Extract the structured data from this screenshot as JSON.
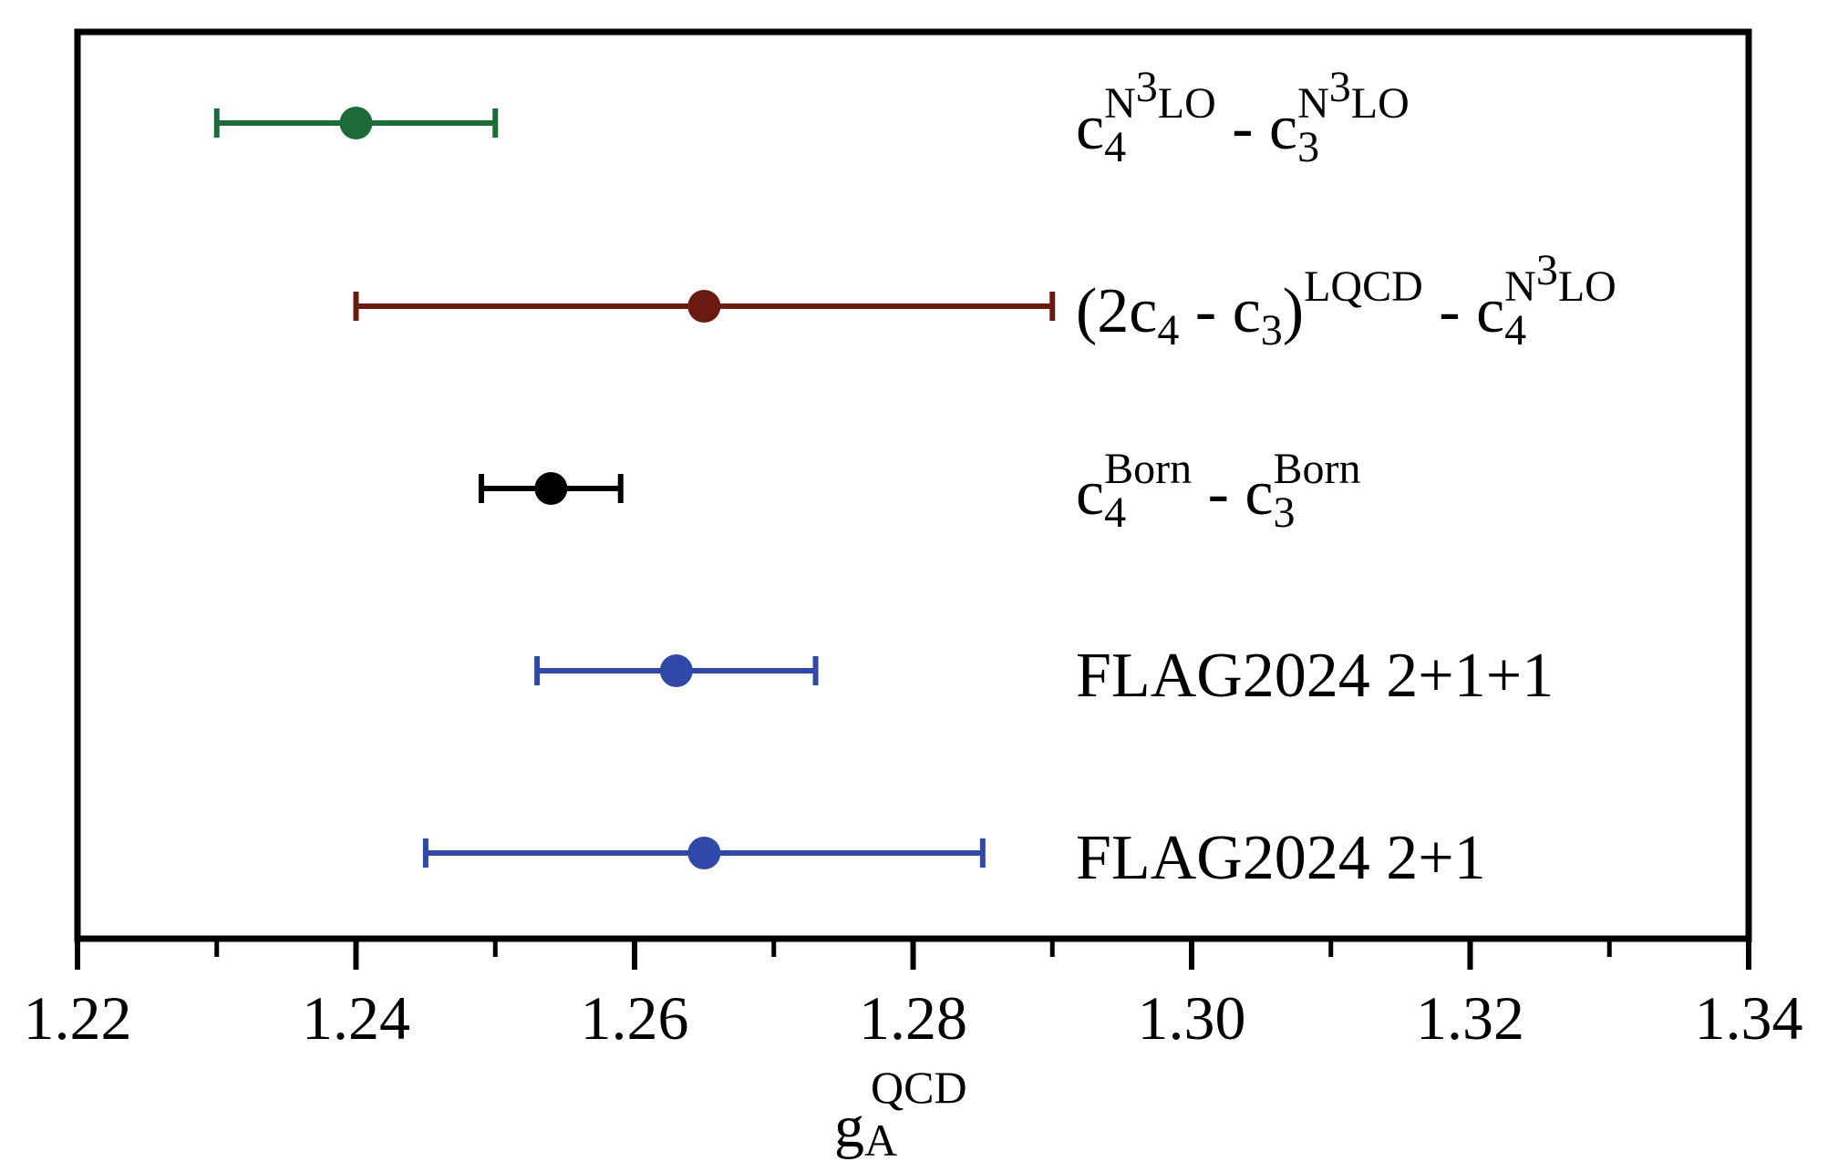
{
  "chart_data": {
    "type": "scatter",
    "orientation": "horizontal-error-bars",
    "xlabel": {
      "base": "g",
      "sub": "A",
      "sup": "QCD"
    },
    "xlim": [
      1.22,
      1.34
    ],
    "x_ticks": [
      "1.22",
      "1.24",
      "1.26",
      "1.28",
      "1.30",
      "1.32",
      "1.34"
    ],
    "x_tick_values": [
      1.22,
      1.24,
      1.26,
      1.28,
      1.3,
      1.32,
      1.34
    ],
    "x_minor_ticks": [
      1.23,
      1.25,
      1.27,
      1.29,
      1.31,
      1.33
    ],
    "grid": false,
    "legend": "none",
    "series": [
      {
        "label_parts": [
          {
            "t": "c"
          },
          {
            "t": "4",
            "sub": true
          },
          {
            "t": "N",
            "sup": true
          },
          {
            "t": "3",
            "sup2": true
          },
          {
            "t": "LO",
            "sup": true
          },
          {
            "t": " - c"
          },
          {
            "t": "3",
            "sub": true
          },
          {
            "t": "N",
            "sup": true
          },
          {
            "t": "3",
            "sup2": true
          },
          {
            "t": "LO",
            "sup": true
          }
        ],
        "value": 1.24,
        "low": 1.23,
        "high": 1.25,
        "color": "#1e6b3a"
      },
      {
        "label_parts": [
          {
            "t": "(2c"
          },
          {
            "t": "4",
            "sub": true
          },
          {
            "t": " - c"
          },
          {
            "t": "3",
            "sub": true
          },
          {
            "t": ")"
          },
          {
            "t": "LQCD",
            "sup": true
          },
          {
            "t": " - c"
          },
          {
            "t": "4",
            "sub": true
          },
          {
            "t": "N",
            "sup": true
          },
          {
            "t": "3",
            "sup2": true
          },
          {
            "t": "LO",
            "sup": true
          }
        ],
        "value": 1.265,
        "low": 1.24,
        "high": 1.29,
        "color": "#6b1a12"
      },
      {
        "label_parts": [
          {
            "t": "c"
          },
          {
            "t": "4",
            "sub": true
          },
          {
            "t": "Born",
            "sup": true
          },
          {
            "t": " - c"
          },
          {
            "t": "3",
            "sub": true
          },
          {
            "t": "Born",
            "sup": true
          }
        ],
        "value": 1.254,
        "low": 1.249,
        "high": 1.259,
        "color": "#000000"
      },
      {
        "label_parts": [
          {
            "t": "FLAG2024 2+1+1"
          }
        ],
        "value": 1.263,
        "low": 1.253,
        "high": 1.273,
        "color": "#3049a8"
      },
      {
        "label_parts": [
          {
            "t": "FLAG2024 2+1"
          }
        ],
        "value": 1.265,
        "low": 1.245,
        "high": 1.285,
        "color": "#3049a8"
      }
    ]
  }
}
